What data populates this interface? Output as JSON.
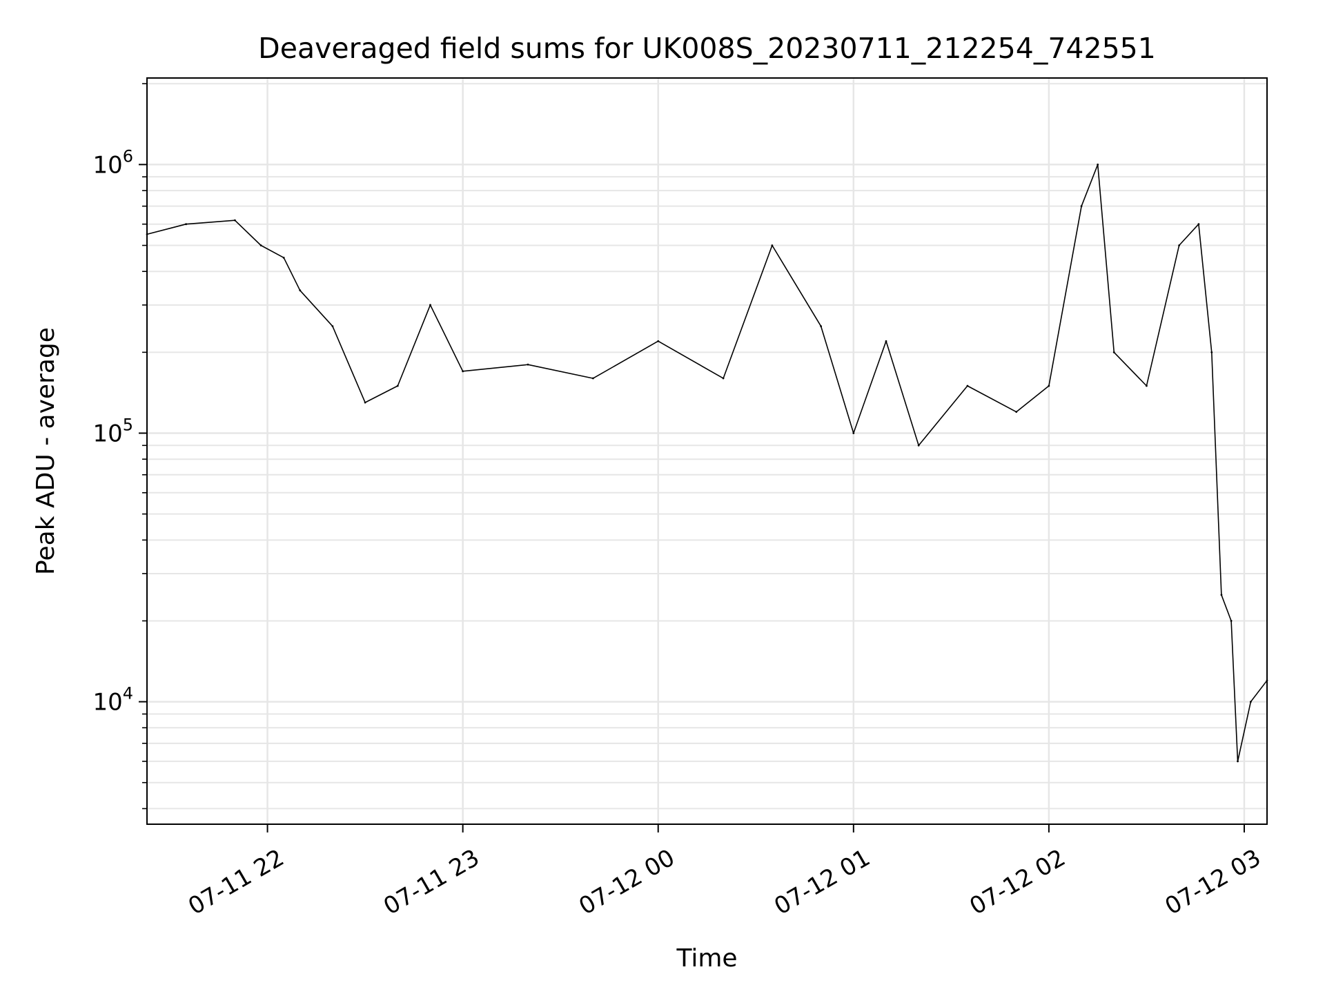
{
  "chart_data": {
    "type": "line",
    "title": "Deaveraged field sums for UK008S_20230711_212254_742551",
    "xlabel": "Time",
    "ylabel": "Peak ADU - average",
    "yscale": "log",
    "grid": true,
    "line_color": "#000000",
    "grid_color": "#e6e6e6",
    "xlim": [
      "2023-07-11 21:23",
      "2023-07-12 03:07"
    ],
    "ylim": [
      3500,
      2100000
    ],
    "x_ticks": [
      {
        "time": "2023-07-11 22:00",
        "label": "07-11 22"
      },
      {
        "time": "2023-07-11 23:00",
        "label": "07-11 23"
      },
      {
        "time": "2023-07-12 00:00",
        "label": "07-12 00"
      },
      {
        "time": "2023-07-12 01:00",
        "label": "07-12 01"
      },
      {
        "time": "2023-07-12 02:00",
        "label": "07-12 02"
      },
      {
        "time": "2023-07-12 03:00",
        "label": "07-12 03"
      }
    ],
    "y_ticks": [
      {
        "value": 10000,
        "base": "10",
        "exp": "4"
      },
      {
        "value": 100000,
        "base": "10",
        "exp": "5"
      },
      {
        "value": 1000000,
        "base": "10",
        "exp": "6"
      }
    ],
    "series": [
      {
        "points": [
          {
            "x": "2023-07-11 21:23",
            "y": 550000
          },
          {
            "x": "2023-07-11 21:35",
            "y": 600000
          },
          {
            "x": "2023-07-11 21:50",
            "y": 620000
          },
          {
            "x": "2023-07-11 21:58",
            "y": 500000
          },
          {
            "x": "2023-07-11 22:05",
            "y": 450000
          },
          {
            "x": "2023-07-11 22:10",
            "y": 340000
          },
          {
            "x": "2023-07-11 22:20",
            "y": 250000
          },
          {
            "x": "2023-07-11 22:30",
            "y": 130000
          },
          {
            "x": "2023-07-11 22:40",
            "y": 150000
          },
          {
            "x": "2023-07-11 22:50",
            "y": 300000
          },
          {
            "x": "2023-07-11 23:00",
            "y": 170000
          },
          {
            "x": "2023-07-11 23:20",
            "y": 180000
          },
          {
            "x": "2023-07-11 23:40",
            "y": 160000
          },
          {
            "x": "2023-07-12 00:00",
            "y": 220000
          },
          {
            "x": "2023-07-12 00:20",
            "y": 160000
          },
          {
            "x": "2023-07-12 00:35",
            "y": 500000
          },
          {
            "x": "2023-07-12 00:50",
            "y": 250000
          },
          {
            "x": "2023-07-12 01:00",
            "y": 100000
          },
          {
            "x": "2023-07-12 01:10",
            "y": 220000
          },
          {
            "x": "2023-07-12 01:20",
            "y": 90000
          },
          {
            "x": "2023-07-12 01:35",
            "y": 150000
          },
          {
            "x": "2023-07-12 01:50",
            "y": 120000
          },
          {
            "x": "2023-07-12 02:00",
            "y": 150000
          },
          {
            "x": "2023-07-12 02:10",
            "y": 700000
          },
          {
            "x": "2023-07-12 02:15",
            "y": 1000000
          },
          {
            "x": "2023-07-12 02:20",
            "y": 200000
          },
          {
            "x": "2023-07-12 02:30",
            "y": 150000
          },
          {
            "x": "2023-07-12 02:40",
            "y": 500000
          },
          {
            "x": "2023-07-12 02:46",
            "y": 600000
          },
          {
            "x": "2023-07-12 02:50",
            "y": 200000
          },
          {
            "x": "2023-07-12 02:53",
            "y": 25000
          },
          {
            "x": "2023-07-12 02:56",
            "y": 20000
          },
          {
            "x": "2023-07-12 02:58",
            "y": 6000
          },
          {
            "x": "2023-07-12 03:02",
            "y": 10000
          },
          {
            "x": "2023-07-12 03:07",
            "y": 12000
          }
        ]
      }
    ]
  }
}
